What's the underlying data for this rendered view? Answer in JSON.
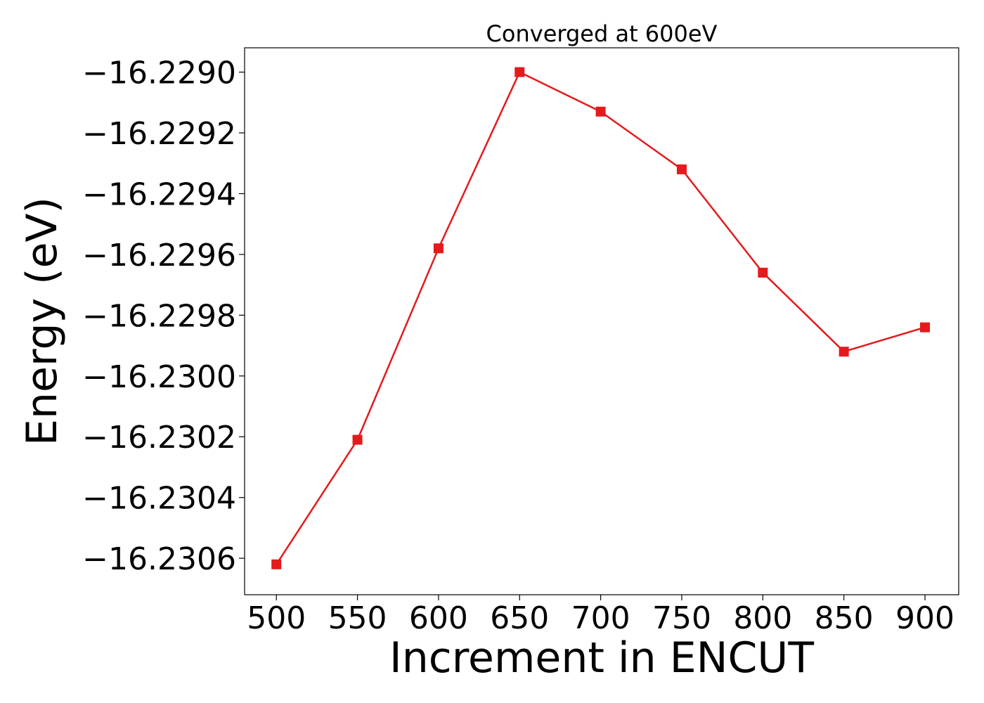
{
  "chart_data": {
    "type": "line",
    "title": "Converged at 600eV",
    "xlabel": "Increment in ENCUT",
    "ylabel": "Energy (eV)",
    "x": [
      500,
      550,
      600,
      650,
      700,
      750,
      800,
      850,
      900
    ],
    "series": [
      {
        "values": [
          -16.23062,
          -16.23021,
          -16.22958,
          -16.229,
          -16.22913,
          -16.22932,
          -16.22966,
          -16.22992,
          -16.22984
        ],
        "color": "#e41a1c",
        "marker": "square"
      }
    ],
    "xticks": [
      "500",
      "550",
      "600",
      "650",
      "700",
      "750",
      "800",
      "850",
      "900"
    ],
    "xtick_values": [
      500,
      550,
      600,
      650,
      700,
      750,
      800,
      850,
      900
    ],
    "yticks": [
      "−16.2290",
      "−16.2292",
      "−16.2294",
      "−16.2296",
      "−16.2298",
      "−16.2300",
      "−16.2302",
      "−16.2304",
      "−16.2306"
    ],
    "ytick_values": [
      -16.229,
      -16.2292,
      -16.2294,
      -16.2296,
      -16.2298,
      -16.23,
      -16.2302,
      -16.2304,
      -16.2306
    ],
    "xlim": [
      480.4,
      920.8
    ],
    "ylim": [
      -16.23072,
      -16.22892
    ],
    "grid": false,
    "legend": "none"
  }
}
